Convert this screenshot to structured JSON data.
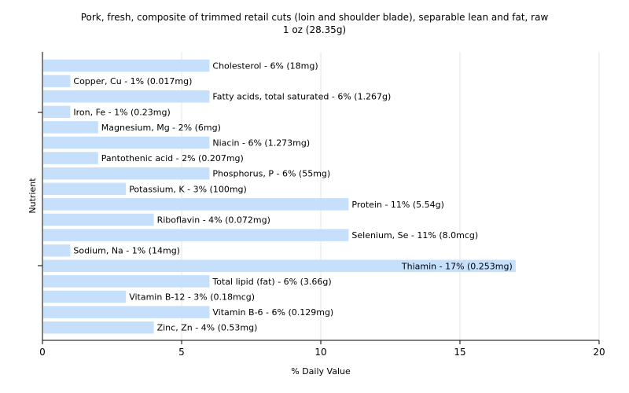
{
  "chart_data": {
    "type": "bar",
    "orientation": "horizontal",
    "title": "Pork, fresh, composite of trimmed retail cuts (loin and shoulder blade), separable lean and fat, raw",
    "subtitle": "1 oz (28.35g)",
    "xlabel": "% Daily Value",
    "ylabel": "Nutrient",
    "xlim": [
      0,
      20
    ],
    "xticks": [
      "0",
      "5",
      "10",
      "15",
      "20"
    ],
    "grid": true,
    "bar_color": "#c6e0fc",
    "categories": [
      "Cholesterol",
      "Copper, Cu",
      "Fatty acids, total saturated",
      "Iron, Fe",
      "Magnesium, Mg",
      "Niacin",
      "Pantothenic acid",
      "Phosphorus, P",
      "Potassium, K",
      "Protein",
      "Riboflavin",
      "Selenium, Se",
      "Sodium, Na",
      "Thiamin",
      "Total lipid (fat)",
      "Vitamin B-12",
      "Vitamin B-6",
      "Zinc, Zn"
    ],
    "values": [
      6,
      1,
      6,
      1,
      2,
      6,
      2,
      6,
      3,
      11,
      4,
      11,
      1,
      17,
      6,
      3,
      6,
      4
    ],
    "labels": [
      "Cholesterol - 6% (18mg)",
      "Copper, Cu - 1% (0.017mg)",
      "Fatty acids, total saturated - 6% (1.267g)",
      "Iron, Fe - 1% (0.23mg)",
      "Magnesium, Mg - 2% (6mg)",
      "Niacin - 6% (1.273mg)",
      "Pantothenic acid - 2% (0.207mg)",
      "Phosphorus, P - 6% (55mg)",
      "Potassium, K - 3% (100mg)",
      "Protein - 11% (5.54g)",
      "Riboflavin - 4% (0.072mg)",
      "Selenium, Se - 11% (8.0mcg)",
      "Sodium, Na - 1% (14mg)",
      "Thiamin - 17% (0.253mg)",
      "Total lipid (fat) - 6% (3.66g)",
      "Vitamin B-12 - 3% (0.18mcg)",
      "Vitamin B-6 - 6% (0.129mg)",
      "Zinc, Zn - 4% (0.53mg)"
    ]
  }
}
